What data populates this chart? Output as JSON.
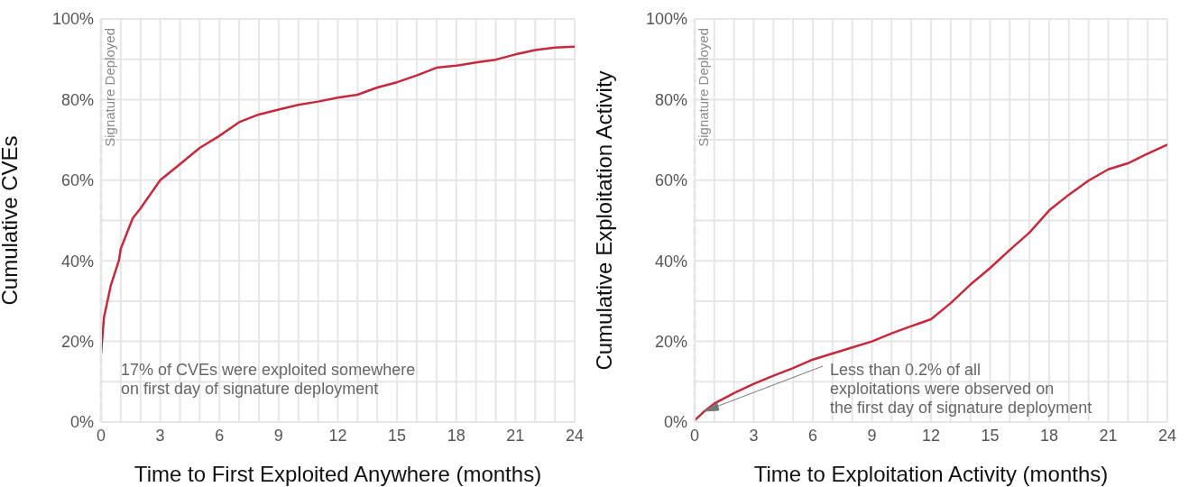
{
  "chart_data": [
    {
      "type": "line",
      "ylabel": "Cumulative CVEs",
      "xlabel": "Time to First Exploited Anywhere (months)",
      "color": "#c8283c",
      "line_style": "solid",
      "grid": true,
      "x": [
        0,
        0.15,
        0.5,
        0.9,
        1,
        1.6,
        2,
        3,
        4,
        5,
        6,
        7,
        8,
        9,
        10,
        11,
        12,
        13,
        14,
        15,
        16,
        17,
        18,
        19,
        20,
        21,
        22,
        23,
        24
      ],
      "values": [
        17,
        26,
        34,
        40,
        43,
        50.5,
        53,
        60,
        64,
        68,
        71,
        74.4,
        76.3,
        77.5,
        78.7,
        79.5,
        80.5,
        81.2,
        83,
        84.3,
        86,
        87.9,
        88.4,
        89.2,
        89.9,
        91.2,
        92.3,
        92.9,
        93.1
      ],
      "xlim": [
        0,
        24
      ],
      "ylim": [
        0,
        100
      ],
      "xticks": [
        0,
        {
          "value": 1,
          "label": null
        },
        {
          "value": 2,
          "label": null
        },
        3,
        {
          "value": 4,
          "label": null
        },
        {
          "value": 5,
          "label": null
        },
        6,
        {
          "value": 7,
          "label": null
        },
        {
          "value": 8,
          "label": null
        },
        9,
        {
          "value": 10,
          "label": null
        },
        {
          "value": 11,
          "label": null
        },
        12,
        {
          "value": 13,
          "label": null
        },
        {
          "value": 14,
          "label": null
        },
        15,
        {
          "value": 16,
          "label": null
        },
        {
          "value": 17,
          "label": null
        },
        18,
        {
          "value": 19,
          "label": null
        },
        {
          "value": 20,
          "label": null
        },
        21,
        {
          "value": 22,
          "label": null
        },
        {
          "value": 23,
          "label": null
        },
        24
      ],
      "yticks": [
        {
          "value": 0,
          "label": "0%"
        },
        {
          "value": 10,
          "label": null
        },
        {
          "value": 20,
          "label": "20%"
        },
        {
          "value": 30,
          "label": null
        },
        {
          "value": 40,
          "label": "40%"
        },
        {
          "value": 50,
          "label": null
        },
        {
          "value": 60,
          "label": "60%"
        },
        {
          "value": 70,
          "label": null
        },
        {
          "value": 80,
          "label": "80%"
        },
        {
          "value": 90,
          "label": null
        },
        {
          "value": 100,
          "label": "100%"
        }
      ],
      "ref_lines": [
        {
          "axis": "x",
          "value": 0,
          "label": "Signature Deployed",
          "color": "#c8c8c8",
          "line_style": "dashed"
        }
      ],
      "annotations": [
        "17% of CVEs were exploited somewhere\non first day of signature deployment"
      ]
    },
    {
      "type": "line",
      "ylabel": "Cumulative Exploitation Activity",
      "xlabel": "Time to Exploitation Activity (months)",
      "color": "#c8283c",
      "line_style": "solid",
      "grid": true,
      "x": [
        0,
        0.5,
        1,
        2,
        3,
        4,
        5,
        6,
        7,
        8,
        9,
        10,
        11,
        12,
        13,
        14,
        15,
        16,
        17,
        18,
        19,
        20,
        21,
        22,
        23,
        24
      ],
      "values": [
        0.4,
        2.7,
        4.6,
        7.2,
        9.5,
        11.5,
        13.4,
        15.5,
        17,
        18.5,
        20,
        22,
        23.8,
        25.5,
        29.5,
        34.1,
        38.2,
        42.7,
        47,
        52.5,
        56.4,
        59.9,
        62.7,
        64.2,
        66.6,
        68.8
      ],
      "xlim": [
        0,
        24
      ],
      "ylim": [
        0,
        100
      ],
      "xticks": [
        0,
        {
          "value": 1,
          "label": null
        },
        {
          "value": 2,
          "label": null
        },
        3,
        {
          "value": 4,
          "label": null
        },
        {
          "value": 5,
          "label": null
        },
        6,
        {
          "value": 7,
          "label": null
        },
        {
          "value": 8,
          "label": null
        },
        9,
        {
          "value": 10,
          "label": null
        },
        {
          "value": 11,
          "label": null
        },
        12,
        {
          "value": 13,
          "label": null
        },
        {
          "value": 14,
          "label": null
        },
        15,
        {
          "value": 16,
          "label": null
        },
        {
          "value": 17,
          "label": null
        },
        18,
        {
          "value": 19,
          "label": null
        },
        {
          "value": 20,
          "label": null
        },
        21,
        {
          "value": 22,
          "label": null
        },
        {
          "value": 23,
          "label": null
        },
        24
      ],
      "yticks": [
        {
          "value": 0,
          "label": "0%"
        },
        {
          "value": 10,
          "label": null
        },
        {
          "value": 20,
          "label": "20%"
        },
        {
          "value": 30,
          "label": null
        },
        {
          "value": 40,
          "label": "40%"
        },
        {
          "value": 50,
          "label": null
        },
        {
          "value": 60,
          "label": "60%"
        },
        {
          "value": 70,
          "label": null
        },
        {
          "value": 80,
          "label": "80%"
        },
        {
          "value": 90,
          "label": null
        },
        {
          "value": 100,
          "label": "100%"
        }
      ],
      "ref_lines": [
        {
          "axis": "x",
          "value": 0,
          "label": "Signature Deployed",
          "color": "#c8c8c8",
          "line_style": "dashed"
        }
      ],
      "annotations": [
        {
          "text": "Less than 0.2% of all\nexploitations were observed on\nthe first day of signature deployment",
          "x": 0.5,
          "y": 2.7
        }
      ]
    }
  ]
}
